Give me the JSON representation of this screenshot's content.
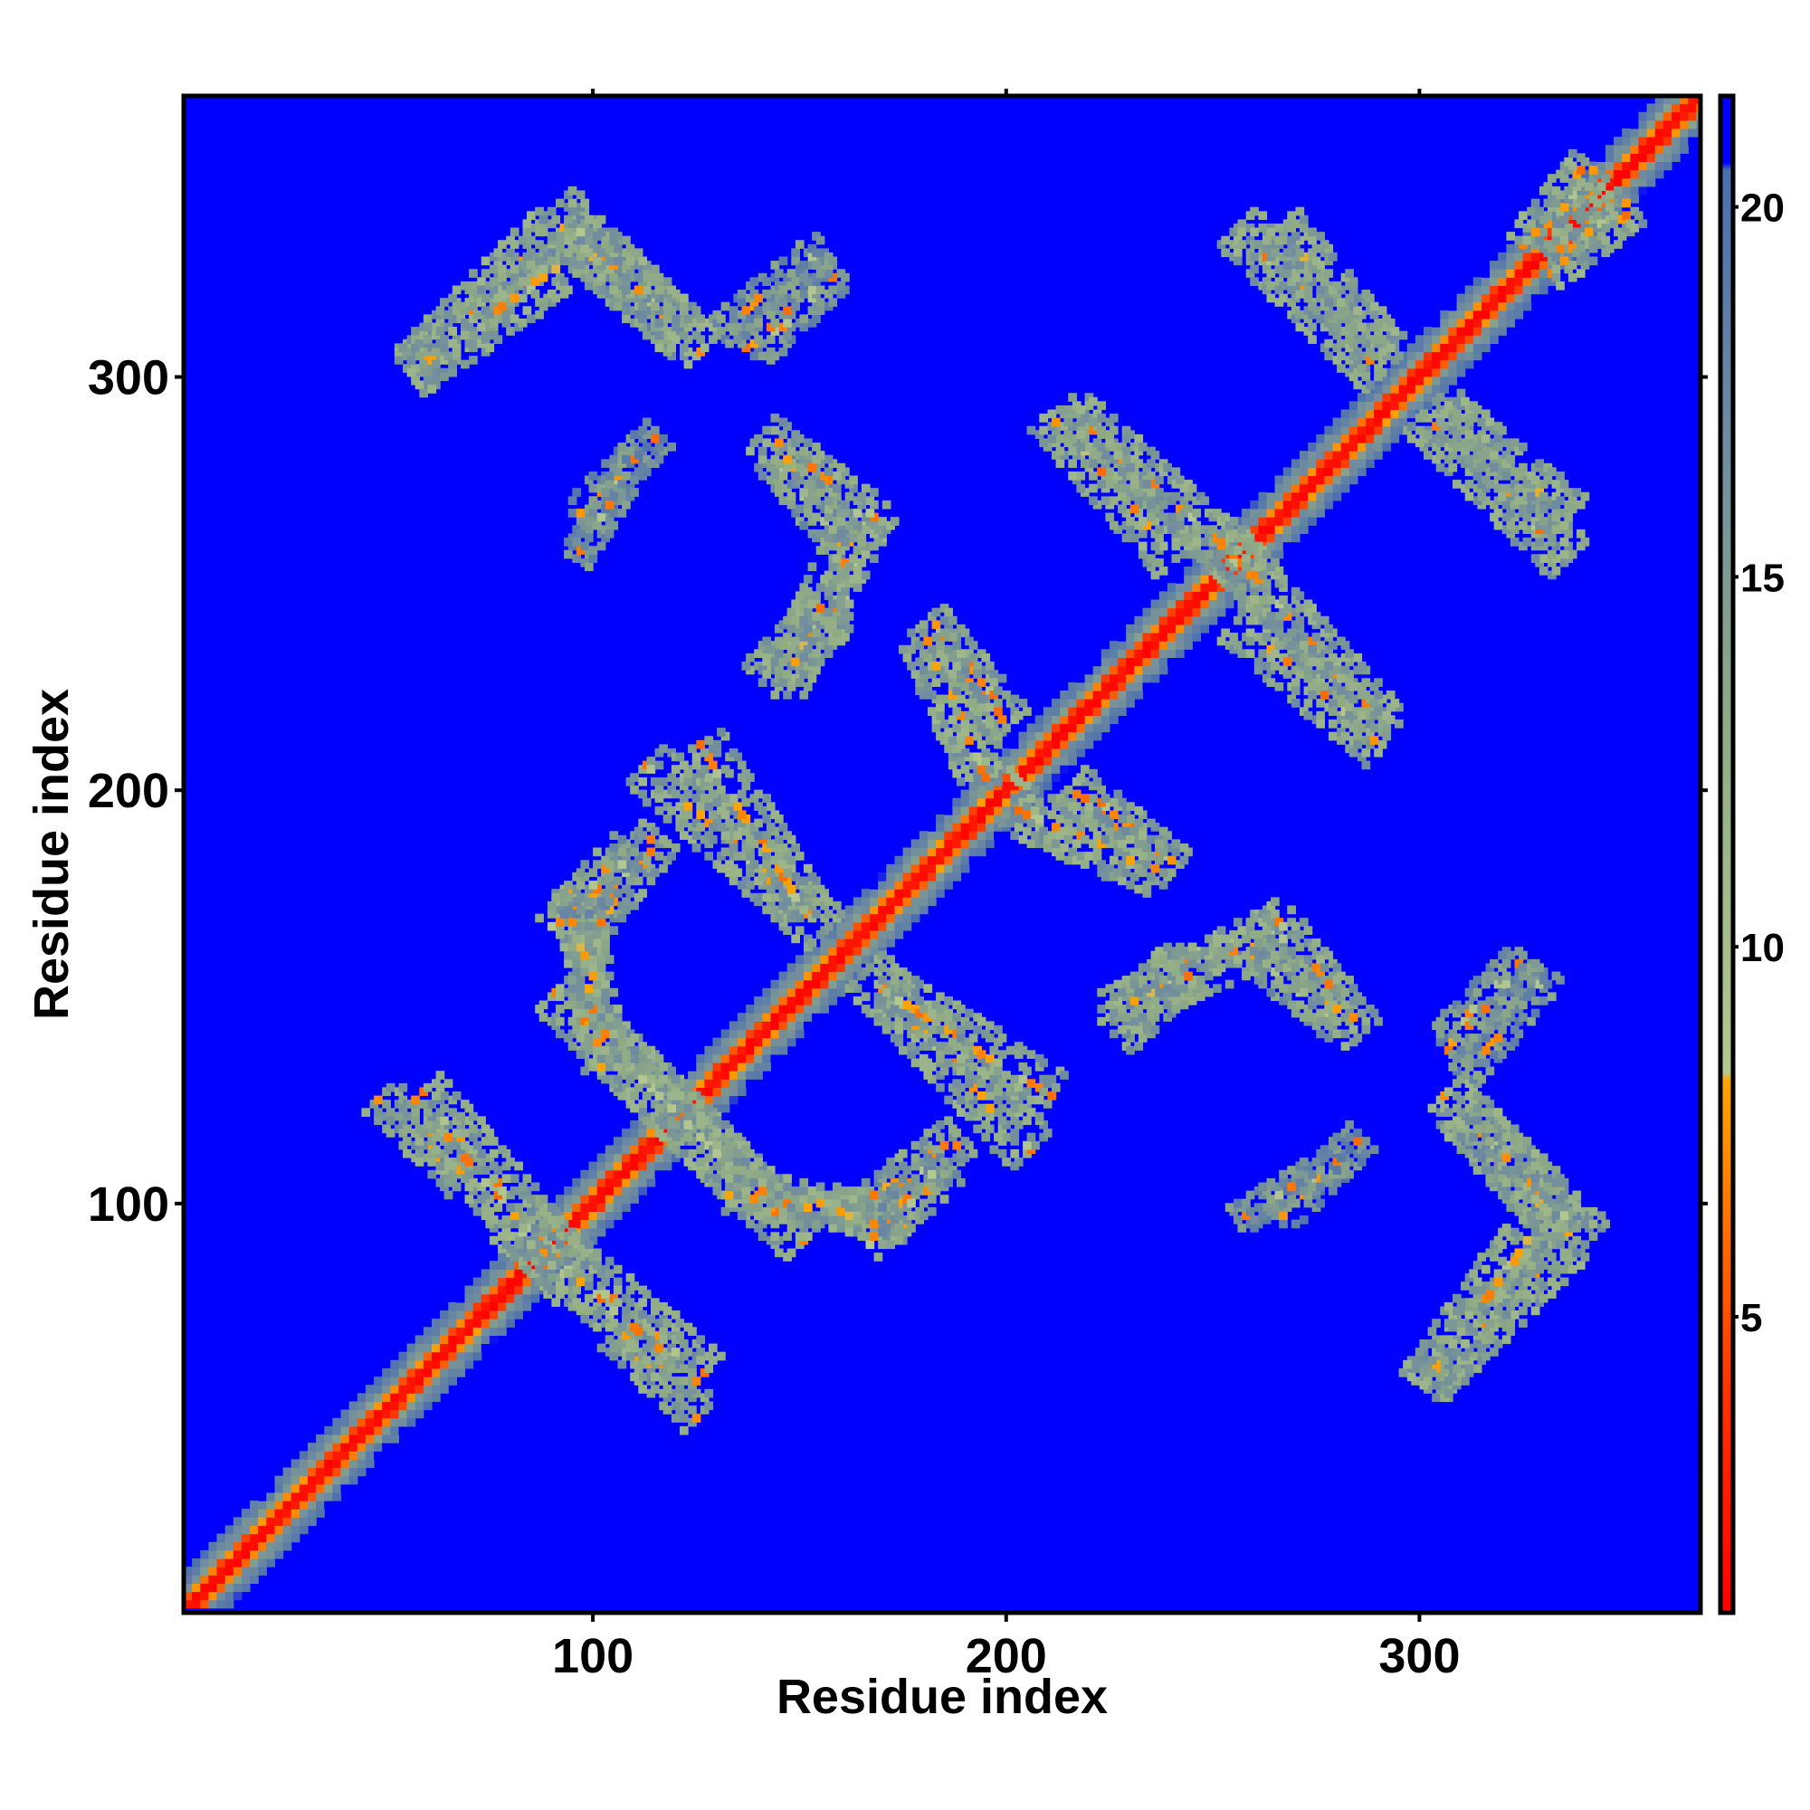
{
  "chart_data": {
    "type": "heatmap",
    "title": "",
    "xlabel": "Residue index",
    "ylabel": "Residue index",
    "xlim": [
      1,
      368
    ],
    "ylim": [
      1,
      368
    ],
    "x_ticks": [
      100,
      200,
      300
    ],
    "y_ticks": [
      100,
      200,
      300
    ],
    "grid": false,
    "colorbar": {
      "position": "right",
      "range": [
        1,
        21.5
      ],
      "ticks": [
        5,
        10,
        15,
        20
      ],
      "stops": [
        {
          "value": 1,
          "color": "#ff0000"
        },
        {
          "value": 4,
          "color": "#ff3300"
        },
        {
          "value": 8.2,
          "color": "#ffa500"
        },
        {
          "value": 8.3,
          "color": "#b4c890"
        },
        {
          "value": 13,
          "color": "#8faa86"
        },
        {
          "value": 17,
          "color": "#6e8aa0"
        },
        {
          "value": 20.5,
          "color": "#4a6eb0"
        },
        {
          "value": 20.6,
          "color": "#0000ff"
        },
        {
          "value": 21.5,
          "color": "#0000ff"
        }
      ]
    },
    "background_value": 21,
    "diagonal": {
      "value": 1,
      "band_halfwidth": 9
    },
    "contact_bands": [
      {
        "from": [
          48,
          125
        ],
        "to": [
          68,
          105
        ],
        "width": 5,
        "value": 11
      },
      {
        "from": [
          80,
          95
        ],
        "to": [
          125,
          57
        ],
        "width": 7,
        "value": 11
      },
      {
        "from": [
          55,
          300
        ],
        "to": [
          90,
          335
        ],
        "width": 6,
        "value": 11
      },
      {
        "from": [
          92,
          335
        ],
        "to": [
          120,
          310
        ],
        "width": 6,
        "value": 12
      },
      {
        "from": [
          137,
          305
        ],
        "to": [
          158,
          325
        ],
        "width": 5,
        "value": 13
      },
      {
        "from": [
          95,
          265
        ],
        "to": [
          115,
          285
        ],
        "width": 4,
        "value": 14
      },
      {
        "from": [
          143,
          280
        ],
        "to": [
          163,
          255
        ],
        "width": 5,
        "value": 12
      },
      {
        "from": [
          140,
          225
        ],
        "to": [
          160,
          245
        ],
        "width": 6,
        "value": 11
      },
      {
        "from": [
          112,
          205
        ],
        "to": [
          155,
          165
        ],
        "width": 6,
        "value": 11
      },
      {
        "from": [
          90,
          150
        ],
        "to": [
          135,
          105
        ],
        "width": 6,
        "value": 11
      },
      {
        "from": [
          132,
          102
        ],
        "to": [
          175,
          95
        ],
        "width": 5,
        "value": 11
      },
      {
        "from": [
          168,
          100
        ],
        "to": [
          188,
          115
        ],
        "width": 5,
        "value": 12
      },
      {
        "from": [
          170,
          150
        ],
        "to": [
          210,
          125
        ],
        "width": 6,
        "value": 11
      },
      {
        "from": [
          90,
          165
        ],
        "to": [
          108,
          185
        ],
        "width": 5,
        "value": 12
      },
      {
        "from": [
          180,
          240
        ],
        "to": [
          200,
          215
        ],
        "width": 5,
        "value": 11
      },
      {
        "from": [
          200,
          195
        ],
        "to": [
          235,
          180
        ],
        "width": 6,
        "value": 11
      },
      {
        "from": [
          215,
          290
        ],
        "to": [
          260,
          250
        ],
        "width": 6,
        "value": 11
      },
      {
        "from": [
          255,
          240
        ],
        "to": [
          290,
          210
        ],
        "width": 6,
        "value": 11
      },
      {
        "from": [
          255,
          335
        ],
        "to": [
          290,
          300
        ],
        "width": 6,
        "value": 11
      },
      {
        "from": [
          305,
          290
        ],
        "to": [
          335,
          265
        ],
        "width": 6,
        "value": 11
      },
      {
        "from": [
          225,
          145
        ],
        "to": [
          265,
          165
        ],
        "width": 6,
        "value": 11
      },
      {
        "from": [
          262,
          170
        ],
        "to": [
          285,
          140
        ],
        "width": 5,
        "value": 11
      },
      {
        "from": [
          300,
          55
        ],
        "to": [
          325,
          90
        ],
        "width": 6,
        "value": 11
      },
      {
        "from": [
          305,
          125
        ],
        "to": [
          340,
          90
        ],
        "width": 6,
        "value": 11
      },
      {
        "from": [
          310,
          130
        ],
        "to": [
          330,
          155
        ],
        "width": 4,
        "value": 13
      },
      {
        "from": [
          255,
          95
        ],
        "to": [
          280,
          110
        ],
        "width": 4,
        "value": 13
      },
      {
        "from": [
          325,
          330
        ],
        "to": [
          340,
          350
        ],
        "width": 5,
        "value": 11
      }
    ]
  }
}
